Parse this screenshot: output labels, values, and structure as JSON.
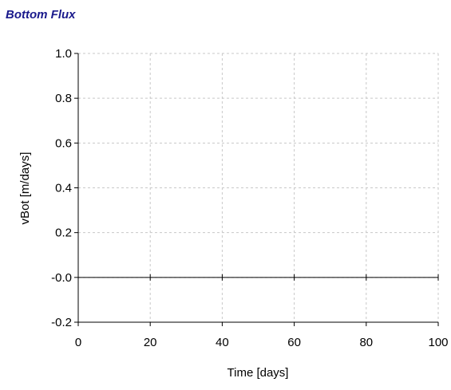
{
  "chart_data": {
    "type": "line",
    "title": "Bottom Flux",
    "xlabel": "Time [days]",
    "ylabel": "vBot [m/days]",
    "xlim": [
      0,
      100
    ],
    "ylim": [
      -0.2,
      1.0
    ],
    "x_ticks": [
      0,
      20,
      40,
      60,
      80,
      100
    ],
    "x_tick_labels": [
      "0",
      "20",
      "40",
      "60",
      "80",
      "100"
    ],
    "y_ticks": [
      1.0,
      0.8,
      0.6,
      0.4,
      0.2,
      0.0,
      -0.2
    ],
    "y_tick_labels": [
      "1.0",
      "0.8",
      "0.6",
      "0.4",
      "0.2",
      "-0.0",
      "-0.2"
    ],
    "grid": true,
    "series": [
      {
        "values": [],
        "x": []
      }
    ],
    "colors": {
      "title": "#1a1a8c",
      "grid": "#c8c8c8",
      "axis": "#000000"
    }
  }
}
